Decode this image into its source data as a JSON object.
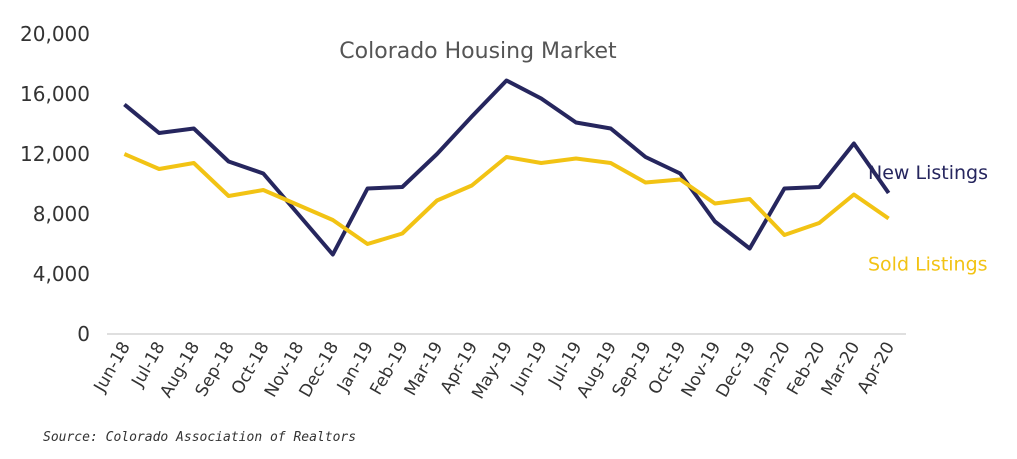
{
  "chart_data": {
    "type": "line",
    "title": "Colorado Housing Market",
    "categories": [
      "Jun-18",
      "Jul-18",
      "Aug-18",
      "Sep-18",
      "Oct-18",
      "Nov-18",
      "Dec-18",
      "Jan-19",
      "Feb-19",
      "Mar-19",
      "Apr-19",
      "May-19",
      "Jun-19",
      "Jul-19",
      "Aug-19",
      "Sep-19",
      "Oct-19",
      "Nov-19",
      "Dec-19",
      "Jan-20",
      "Feb-20",
      "Mar-20",
      "Apr-20"
    ],
    "yticks": [
      "0",
      "4,000",
      "8,000",
      "12,000",
      "16,000",
      "20,000"
    ],
    "ylim": [
      0,
      20000
    ],
    "grid": false,
    "series": [
      {
        "name": "New Listings",
        "color": "#26265e",
        "values": [
          15300,
          13400,
          13700,
          11500,
          10700,
          8000,
          5300,
          9700,
          9800,
          12000,
          14500,
          16900,
          15700,
          14100,
          13700,
          11800,
          10700,
          7500,
          5700,
          9700,
          9800,
          12700,
          9400
        ]
      },
      {
        "name": "Sold Listings",
        "color": "#f2c314",
        "values": [
          12000,
          11000,
          11400,
          9200,
          9600,
          8600,
          7600,
          6000,
          6700,
          8900,
          9900,
          11800,
          11400,
          11700,
          11400,
          10100,
          10300,
          8700,
          9000,
          6600,
          7400,
          9300,
          7700
        ]
      }
    ]
  },
  "source": "Source: Colorado Association of Realtors"
}
